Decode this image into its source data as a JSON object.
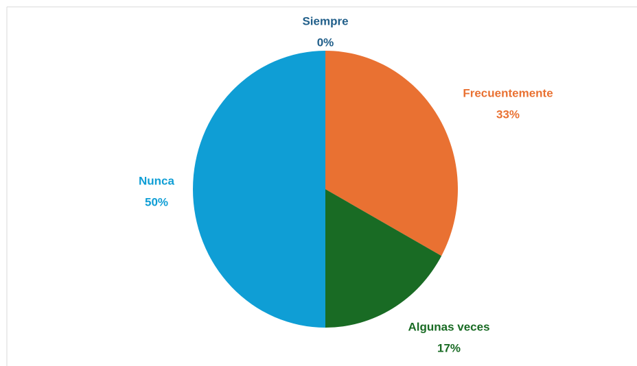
{
  "chart_data": {
    "type": "pie",
    "categories": [
      "Siempre",
      "Frecuentemente",
      "Algunas veces",
      "Nunca"
    ],
    "values": [
      0,
      33,
      17,
      50
    ],
    "value_labels": [
      "0%",
      "33%",
      "17%",
      "50%"
    ],
    "colors": [
      "#215f8a",
      "#e97132",
      "#196b24",
      "#0f9ed5"
    ]
  }
}
